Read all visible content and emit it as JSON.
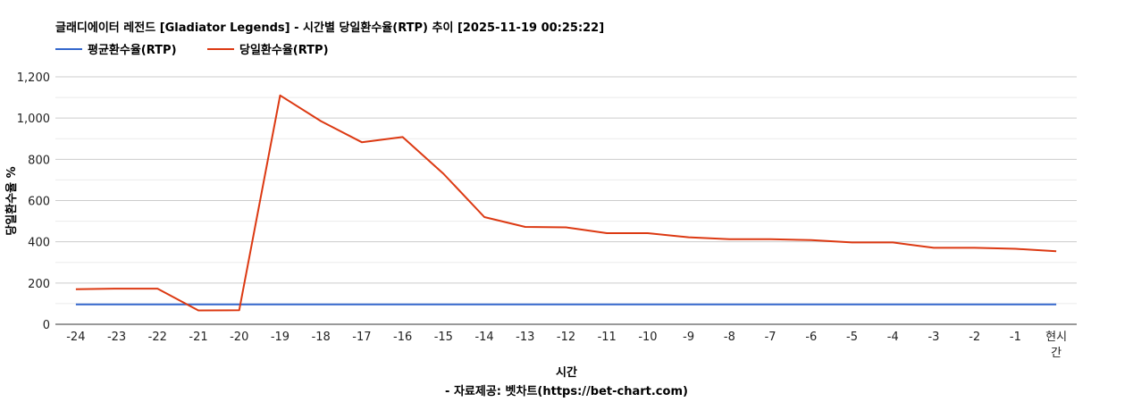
{
  "chart_data": {
    "type": "line",
    "title": "글래디에이터 레전드 [Gladiator Legends] - 시간별 당일환수율(RTP) 추이 [2025-11-19 00:25:22]",
    "xlabel": "시간",
    "ylabel": "당일환수율 %",
    "source": "- 자료제공: 벳차트(https://bet-chart.com)",
    "legend_position": "top-left",
    "grid": true,
    "ylim": [
      0,
      1200
    ],
    "yticks": [
      "0",
      "200",
      "400",
      "600",
      "800",
      "1,000",
      "1,200"
    ],
    "categories": [
      "-24",
      "-23",
      "-22",
      "-21",
      "-20",
      "-19",
      "-18",
      "-17",
      "-16",
      "-15",
      "-14",
      "-13",
      "-12",
      "-11",
      "-10",
      "-9",
      "-8",
      "-7",
      "-6",
      "-5",
      "-4",
      "-3",
      "-2",
      "-1",
      "현시간"
    ],
    "series": [
      {
        "name": "평균환수율(RTP)",
        "color": "#3366cc",
        "values": [
          96,
          96,
          96,
          96,
          96,
          96,
          96,
          96,
          96,
          96,
          96,
          96,
          96,
          96,
          96,
          96,
          96,
          96,
          96,
          96,
          96,
          96,
          96,
          96,
          96
        ]
      },
      {
        "name": "당일환수율(RTP)",
        "color": "#dc3912",
        "values": [
          170,
          173,
          173,
          67,
          68,
          1110,
          985,
          883,
          908,
          730,
          520,
          472,
          470,
          442,
          442,
          422,
          413,
          413,
          408,
          397,
          397,
          371,
          371,
          366,
          354
        ]
      }
    ]
  }
}
